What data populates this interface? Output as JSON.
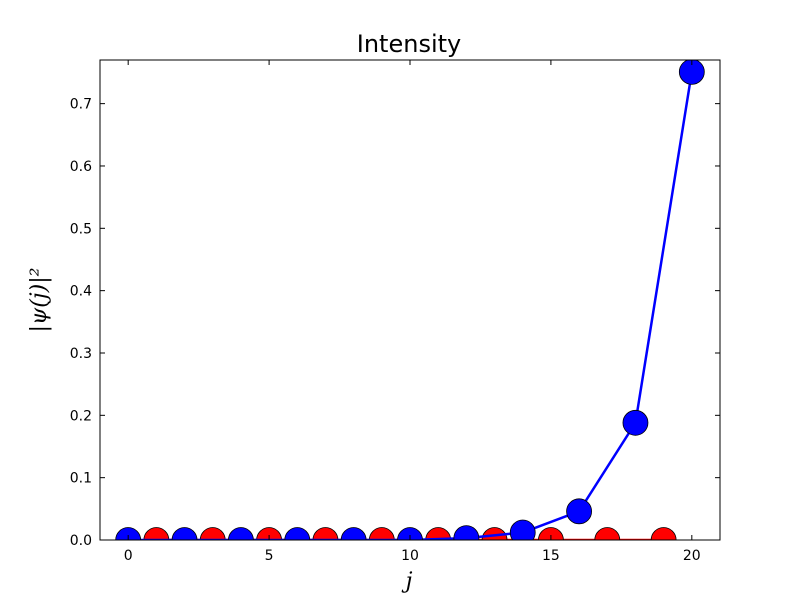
{
  "chart_data": {
    "type": "line",
    "title": "Intensity",
    "xlabel": "j",
    "ylabel": "|ψ(j)|²",
    "xlim": [
      -1,
      21
    ],
    "ylim": [
      0,
      0.77
    ],
    "xticks": [
      "0",
      "5",
      "10",
      "15",
      "20"
    ],
    "xtick_values": [
      0,
      5,
      10,
      15,
      20
    ],
    "yticks": [
      "0.0",
      "0.1",
      "0.2",
      "0.3",
      "0.4",
      "0.5",
      "0.6",
      "0.7"
    ],
    "ytick_values": [
      0,
      0.1,
      0.2,
      0.3,
      0.4,
      0.5,
      0.6,
      0.7
    ],
    "grid": false,
    "series": [
      {
        "color": "#0000ff",
        "x": [
          0,
          2,
          4,
          6,
          8,
          10,
          12,
          14,
          16,
          18,
          20
        ],
        "y": [
          0.0,
          0.0,
          0.0,
          0.0,
          0.0,
          0.0,
          0.003,
          0.012,
          0.046,
          0.188,
          0.751
        ]
      },
      {
        "color": "#ff0000",
        "x": [
          1,
          3,
          5,
          7,
          9,
          11,
          13,
          15,
          17,
          19
        ],
        "y": [
          0.0,
          0.0,
          0.0,
          0.0,
          0.0,
          0.0,
          0.0,
          0.0,
          0.0,
          0.0
        ]
      }
    ]
  }
}
